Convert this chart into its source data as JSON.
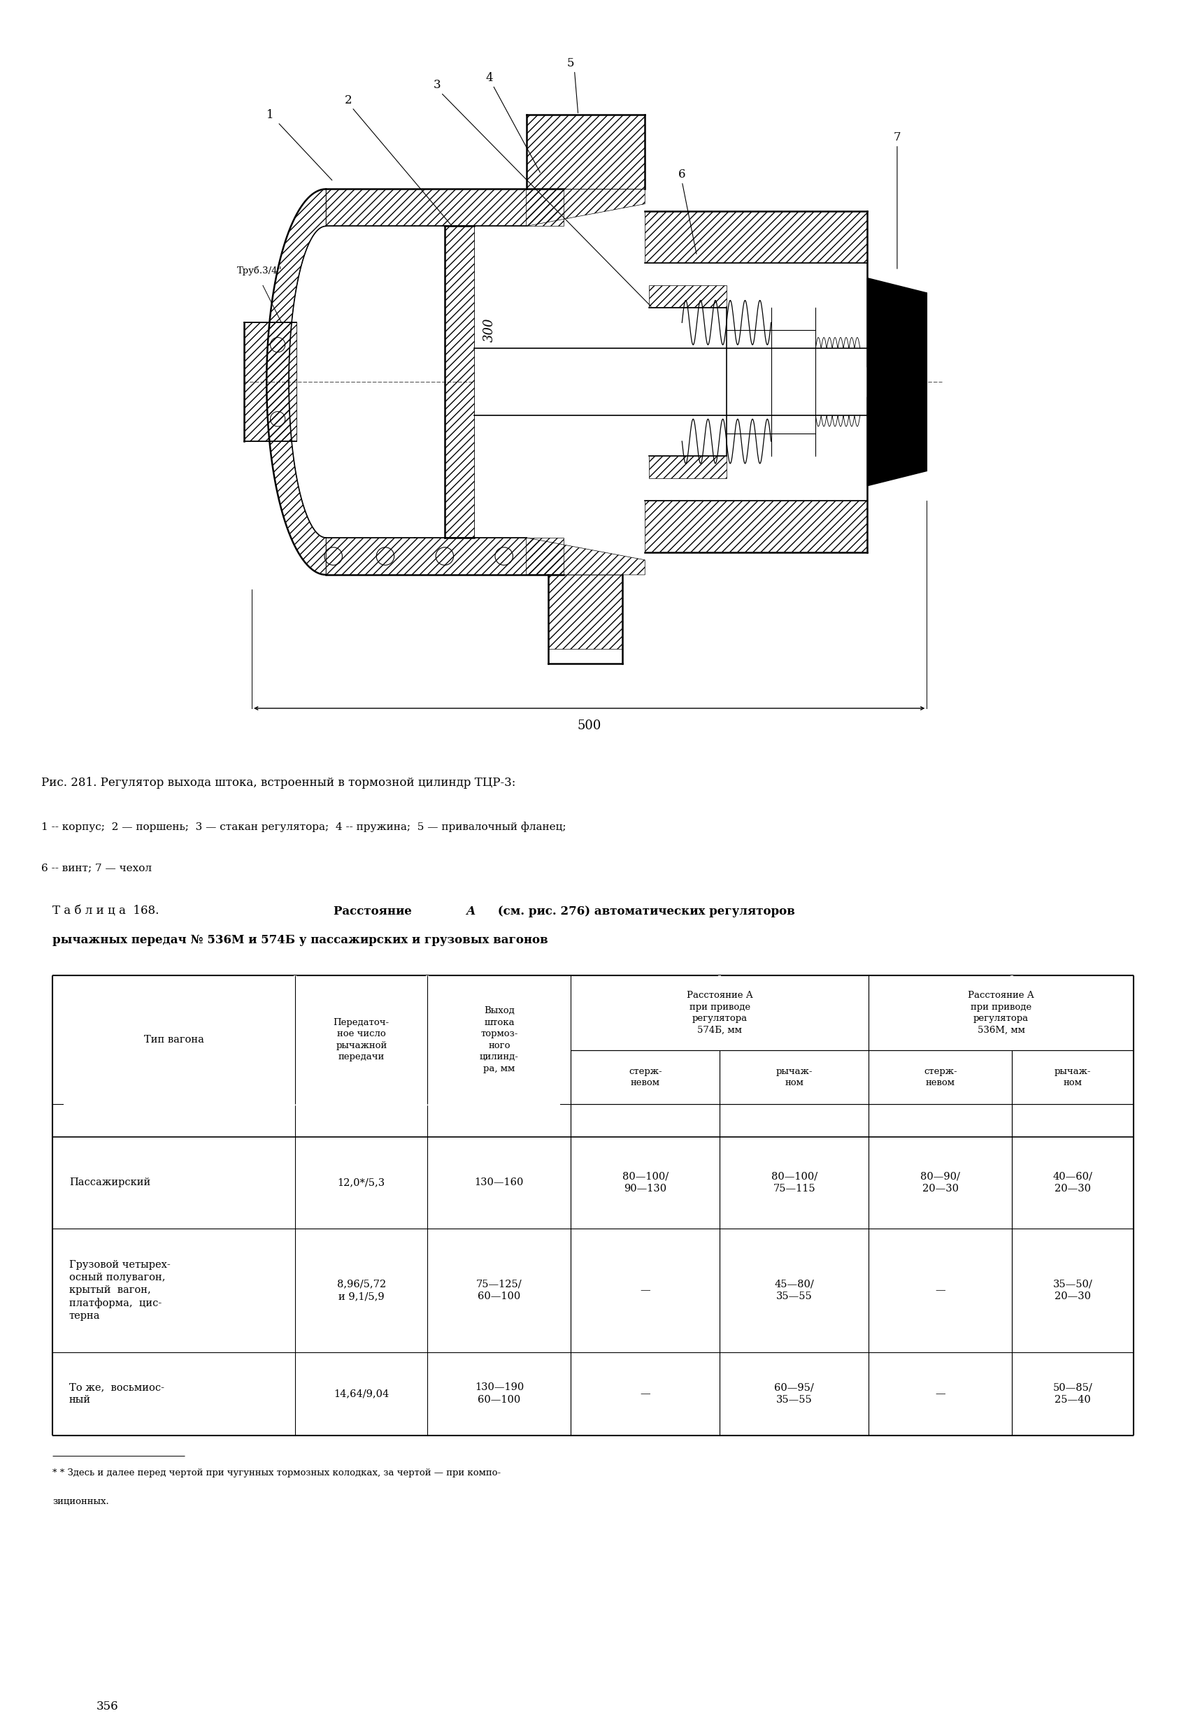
{
  "fig_caption_line1": "Рис. 281. Регулятор выхода штока, встроенный в тормозной цилиндр ТЦР-3:",
  "fig_caption_line2": "1 -- корпус;  2 — поршень;  3 — стакан регулятора;  4 -- пружина;  5 — привалочный фланец;",
  "fig_caption_line3": "6 -- винт; 7 — чехол",
  "table_title_line1": "Т а б л и ц а  168.  Расстояние А (см. рис. 276) автоматических регуляторов",
  "table_title_line2": "рычажных передач № 536М и 574Б у пассажирских и грузовых вагонов",
  "rows": [
    {
      "type": "Пассажирский",
      "ratio": "12,0*/5,3",
      "stroke": "130—160",
      "a574s": "80—100/\n90—130",
      "a574r": "80—100/\n75—115",
      "a536s": "80—90/\n20—30",
      "a536r": "40—60/\n20—30"
    },
    {
      "type": "Грузовой четырех-\nосный полувагон,\nкрытый  вагон,\nплатформа,  цис-\nтерна",
      "ratio": "8,96/5,72\nи 9,1/5,9",
      "stroke": "75—125/\n60—100",
      "a574s": "—",
      "a574r": "45—80/\n35—55",
      "a536s": "—",
      "a536r": "35—50/\n20—30"
    },
    {
      "type": "То же,  восьмиос-\nный",
      "ratio": "14,64/9,04",
      "stroke": "130—190\n60—100",
      "a574s": "—",
      "a574r": "60—95/\n35—55",
      "a536s": "—",
      "a536r": "50—85/\n25—40"
    }
  ],
  "footnote_line1": "* Здесь и далее перед чертой при чугунных тормозных колодках, за чертой — при компо-",
  "footnote_line2": "зиционных.",
  "page_number": "356",
  "background_color": "#ffffff"
}
